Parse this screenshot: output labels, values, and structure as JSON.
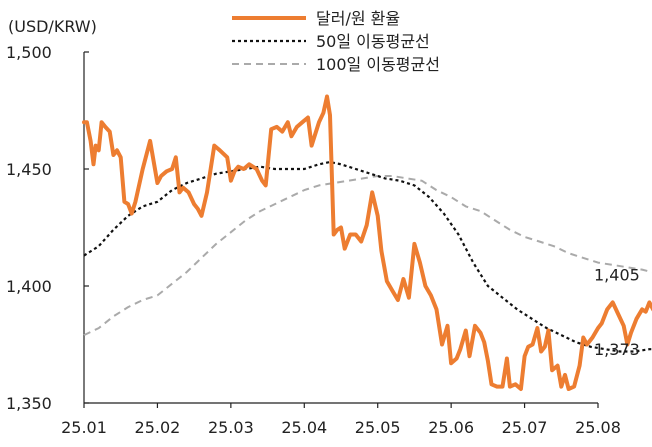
{
  "chart_data": {
    "type": "line",
    "title": "",
    "ylabel": "(USD/KRW)",
    "xlabel": "",
    "ylim": [
      1350,
      1500
    ],
    "y_ticks": [
      "1,350",
      "1,400",
      "1,450",
      "1,500"
    ],
    "y_tick_values": [
      1350,
      1400,
      1450,
      1500
    ],
    "x_ticks": [
      "25.01",
      "25.02",
      "25.03",
      "25.04",
      "25.05",
      "25.06",
      "25.07",
      "25.08"
    ],
    "grid": false,
    "legend_position": "top-center",
    "series": [
      {
        "name": "달러/원 환율",
        "color": "#ED7D31",
        "style": "solid",
        "points": [
          [
            0.0,
            1470
          ],
          [
            0.08,
            1470
          ],
          [
            0.18,
            1462
          ],
          [
            0.26,
            1452
          ],
          [
            0.32,
            1460
          ],
          [
            0.4,
            1458
          ],
          [
            0.48,
            1470
          ],
          [
            0.58,
            1468
          ],
          [
            0.7,
            1466
          ],
          [
            0.8,
            1456
          ],
          [
            0.9,
            1458
          ],
          [
            1.0,
            1455
          ],
          [
            1.1,
            1436
          ],
          [
            1.2,
            1435
          ],
          [
            1.3,
            1431
          ],
          [
            1.4,
            1436
          ],
          [
            1.6,
            1450
          ],
          [
            1.8,
            1462
          ],
          [
            2.0,
            1444
          ],
          [
            2.1,
            1447
          ],
          [
            2.25,
            1449
          ],
          [
            2.4,
            1450
          ],
          [
            2.5,
            1455
          ],
          [
            2.6,
            1440
          ],
          [
            2.7,
            1442
          ],
          [
            2.85,
            1440
          ],
          [
            3.0,
            1435
          ],
          [
            3.1,
            1433
          ],
          [
            3.2,
            1430
          ],
          [
            3.35,
            1440
          ],
          [
            3.55,
            1460
          ],
          [
            3.7,
            1458
          ],
          [
            3.9,
            1455
          ],
          [
            4.0,
            1445
          ],
          [
            4.1,
            1449
          ],
          [
            4.2,
            1451
          ],
          [
            4.35,
            1450
          ],
          [
            4.5,
            1452
          ],
          [
            4.7,
            1450
          ],
          [
            4.85,
            1445
          ],
          [
            4.95,
            1443
          ],
          [
            5.1,
            1467
          ],
          [
            5.25,
            1468
          ],
          [
            5.4,
            1466
          ],
          [
            5.55,
            1470
          ],
          [
            5.65,
            1464
          ],
          [
            5.8,
            1468
          ],
          [
            5.95,
            1470
          ],
          [
            6.1,
            1472
          ],
          [
            6.2,
            1460
          ],
          [
            6.3,
            1465
          ],
          [
            6.4,
            1470
          ],
          [
            6.52,
            1474
          ],
          [
            6.62,
            1481
          ],
          [
            6.7,
            1473
          ],
          [
            6.8,
            1422
          ],
          [
            6.9,
            1424
          ],
          [
            7.0,
            1425
          ],
          [
            7.1,
            1416
          ],
          [
            7.25,
            1422
          ],
          [
            7.4,
            1422
          ],
          [
            7.55,
            1419
          ],
          [
            7.7,
            1426
          ],
          [
            7.85,
            1440
          ],
          [
            8.0,
            1430
          ],
          [
            8.1,
            1415
          ],
          [
            8.25,
            1402
          ],
          [
            8.4,
            1398
          ],
          [
            8.55,
            1394
          ],
          [
            8.7,
            1403
          ],
          [
            8.85,
            1395
          ],
          [
            9.0,
            1418
          ],
          [
            9.15,
            1410
          ],
          [
            9.3,
            1400
          ],
          [
            9.45,
            1396
          ],
          [
            9.6,
            1390
          ],
          [
            9.75,
            1375
          ],
          [
            9.9,
            1383
          ],
          [
            10.0,
            1367
          ],
          [
            10.15,
            1369
          ],
          [
            10.25,
            1373
          ],
          [
            10.4,
            1381
          ],
          [
            10.5,
            1370
          ],
          [
            10.65,
            1383
          ],
          [
            10.8,
            1380
          ],
          [
            10.9,
            1376
          ],
          [
            11.0,
            1368
          ],
          [
            11.1,
            1358
          ],
          [
            11.25,
            1357
          ],
          [
            11.4,
            1357
          ],
          [
            11.52,
            1369
          ],
          [
            11.6,
            1357
          ],
          [
            11.75,
            1358
          ],
          [
            11.9,
            1356
          ],
          [
            12.0,
            1370
          ],
          [
            12.1,
            1374
          ],
          [
            12.22,
            1375
          ],
          [
            12.35,
            1382
          ],
          [
            12.45,
            1372
          ],
          [
            12.55,
            1374
          ],
          [
            12.65,
            1381
          ],
          [
            12.75,
            1364
          ],
          [
            12.9,
            1366
          ],
          [
            13.0,
            1357
          ],
          [
            13.1,
            1362
          ],
          [
            13.2,
            1356
          ],
          [
            13.35,
            1357
          ],
          [
            13.5,
            1366
          ],
          [
            13.6,
            1378
          ],
          [
            13.7,
            1375
          ],
          [
            13.85,
            1378
          ],
          [
            14.0,
            1382
          ],
          [
            14.1,
            1384
          ],
          [
            14.25,
            1390
          ],
          [
            14.4,
            1393
          ],
          [
            14.55,
            1388
          ],
          [
            14.7,
            1383
          ],
          [
            14.8,
            1375
          ],
          [
            14.9,
            1380
          ],
          [
            15.05,
            1386
          ],
          [
            15.2,
            1390
          ],
          [
            15.3,
            1389
          ],
          [
            15.4,
            1393
          ],
          [
            15.5,
            1390
          ],
          [
            15.7,
            1385
          ]
        ]
      },
      {
        "name": "50일 이동평균선",
        "color": "#111111",
        "style": "dotted",
        "points": [
          [
            0.0,
            1413
          ],
          [
            0.4,
            1417
          ],
          [
            0.8,
            1424
          ],
          [
            1.2,
            1430
          ],
          [
            1.6,
            1434
          ],
          [
            2.0,
            1436
          ],
          [
            2.4,
            1441
          ],
          [
            2.8,
            1444
          ],
          [
            3.2,
            1446
          ],
          [
            3.6,
            1448
          ],
          [
            4.0,
            1449
          ],
          [
            4.4,
            1450
          ],
          [
            4.8,
            1451
          ],
          [
            5.2,
            1450
          ],
          [
            5.6,
            1450
          ],
          [
            6.0,
            1450
          ],
          [
            6.4,
            1452
          ],
          [
            6.7,
            1453
          ],
          [
            7.0,
            1452
          ],
          [
            7.4,
            1450
          ],
          [
            7.8,
            1448
          ],
          [
            8.2,
            1446
          ],
          [
            8.6,
            1445
          ],
          [
            9.0,
            1443
          ],
          [
            9.4,
            1438
          ],
          [
            9.8,
            1431
          ],
          [
            10.2,
            1422
          ],
          [
            10.6,
            1410
          ],
          [
            11.0,
            1400
          ],
          [
            11.4,
            1395
          ],
          [
            11.8,
            1390
          ],
          [
            12.2,
            1386
          ],
          [
            12.6,
            1382
          ],
          [
            13.0,
            1379
          ],
          [
            13.4,
            1376
          ],
          [
            13.8,
            1374
          ],
          [
            14.2,
            1373
          ],
          [
            14.6,
            1372
          ],
          [
            15.0,
            1372
          ],
          [
            15.4,
            1373
          ],
          [
            15.7,
            1373
          ]
        ]
      },
      {
        "name": "100일 이동평균선",
        "color": "#AAAAAA",
        "style": "dashed",
        "points": [
          [
            0.0,
            1379
          ],
          [
            0.4,
            1382
          ],
          [
            0.8,
            1387
          ],
          [
            1.2,
            1391
          ],
          [
            1.6,
            1394
          ],
          [
            2.0,
            1396
          ],
          [
            2.4,
            1401
          ],
          [
            2.8,
            1406
          ],
          [
            3.2,
            1412
          ],
          [
            3.6,
            1418
          ],
          [
            4.0,
            1423
          ],
          [
            4.4,
            1428
          ],
          [
            4.8,
            1432
          ],
          [
            5.2,
            1435
          ],
          [
            5.6,
            1438
          ],
          [
            6.0,
            1441
          ],
          [
            6.4,
            1443
          ],
          [
            6.8,
            1444
          ],
          [
            7.2,
            1445
          ],
          [
            7.6,
            1446
          ],
          [
            8.0,
            1447
          ],
          [
            8.4,
            1447
          ],
          [
            8.8,
            1446
          ],
          [
            9.2,
            1445
          ],
          [
            9.6,
            1441
          ],
          [
            10.0,
            1438
          ],
          [
            10.4,
            1434
          ],
          [
            10.8,
            1432
          ],
          [
            11.2,
            1428
          ],
          [
            11.6,
            1424
          ],
          [
            12.0,
            1421
          ],
          [
            12.4,
            1419
          ],
          [
            12.8,
            1417
          ],
          [
            13.2,
            1414
          ],
          [
            13.6,
            1412
          ],
          [
            14.0,
            1410
          ],
          [
            14.4,
            1409
          ],
          [
            14.8,
            1408
          ],
          [
            15.2,
            1407
          ],
          [
            15.7,
            1405
          ]
        ]
      }
    ],
    "end_labels": [
      {
        "text": "1,405",
        "value": 1405
      },
      {
        "text": "1,373",
        "value": 1373
      }
    ]
  }
}
